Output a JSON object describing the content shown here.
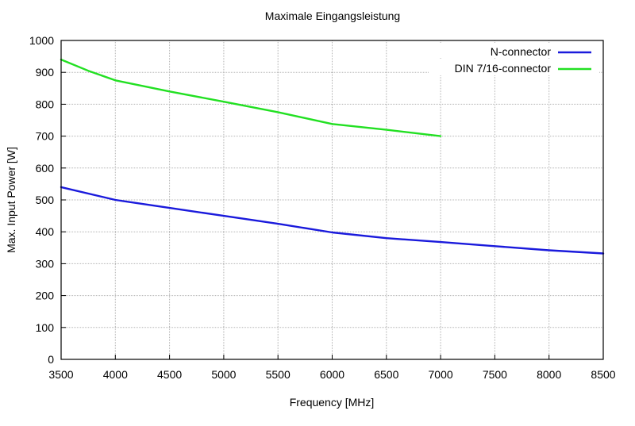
{
  "chart_data": {
    "type": "line",
    "title": "Maximale Eingangsleistung",
    "xlabel": "Frequency [MHz]",
    "ylabel": "Max. Input Power [W]",
    "xlim": [
      3500,
      8500
    ],
    "ylim": [
      0,
      1000
    ],
    "x_ticks": [
      3500,
      4000,
      4500,
      5000,
      5500,
      6000,
      6500,
      7000,
      7500,
      8000,
      8500
    ],
    "y_ticks": [
      0,
      100,
      200,
      300,
      400,
      500,
      600,
      700,
      800,
      900,
      1000
    ],
    "grid": true,
    "legend_position": "top-right",
    "series": [
      {
        "name": "N-connector",
        "color": "#1a1adc",
        "x": [
          3500,
          4000,
          4500,
          5000,
          5500,
          6000,
          6500,
          7000,
          7500,
          8000,
          8500
        ],
        "values": [
          540,
          500,
          475,
          450,
          425,
          398,
          380,
          368,
          355,
          342,
          332
        ]
      },
      {
        "name": "DIN 7/16-connector",
        "color": "#22e022",
        "x": [
          3500,
          3750,
          4000,
          4500,
          5000,
          5500,
          6000,
          6500,
          7000
        ],
        "values": [
          940,
          905,
          875,
          840,
          808,
          775,
          738,
          720,
          700
        ]
      }
    ]
  }
}
